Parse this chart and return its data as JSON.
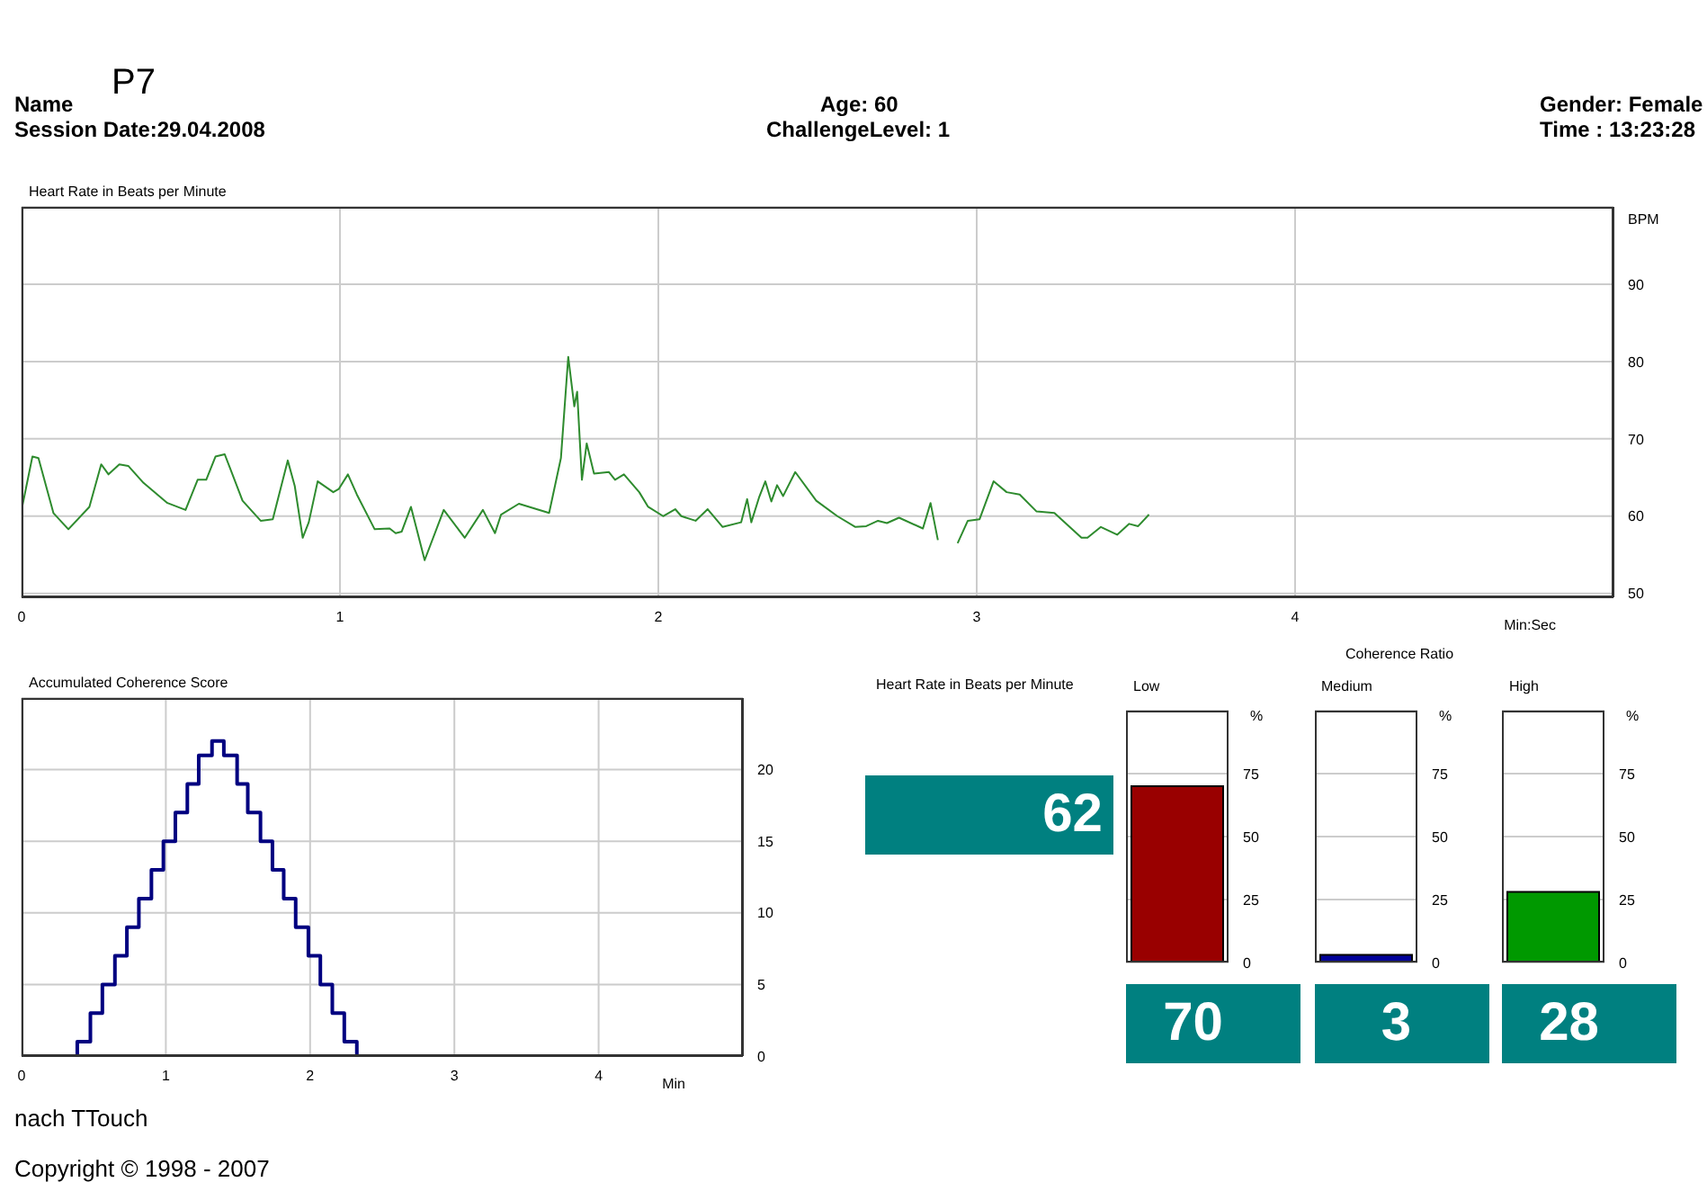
{
  "chart_data": [
    {
      "type": "other",
      "annotations": [
        "Name",
        "P7",
        "Session Date:29.04.2008",
        "Age: 60",
        "ChallengeLevel: 1",
        "Gender: Female",
        "Time :  13:23:28"
      ]
    },
    {
      "type": "line",
      "title": "Heart Rate in Beats per Minute",
      "ylabel": "BPM",
      "xlabel": "Min:Sec",
      "color": "#2e8b2e",
      "grid": true,
      "xlim": [
        0,
        5
      ],
      "xticks": [
        0,
        1,
        2,
        3,
        4
      ],
      "ylim": [
        49.5,
        100
      ],
      "yticks": [
        50,
        60,
        70,
        80,
        90
      ],
      "x": [
        0,
        0.034,
        0.053,
        0.1,
        0.147,
        0.213,
        0.25,
        0.273,
        0.307,
        0.335,
        0.383,
        0.458,
        0.515,
        0.553,
        0.58,
        0.609,
        0.638,
        0.694,
        0.751,
        0.789,
        0.836,
        0.858,
        0.883,
        0.902,
        0.93,
        0.979,
        0.996,
        1.025,
        1.053,
        1.109,
        1.156,
        1.175,
        1.194,
        1.223,
        1.266,
        1.326,
        1.392,
        1.449,
        1.487,
        1.506,
        1.562,
        1.657,
        1.694,
        1.717,
        1.736,
        1.745,
        1.76,
        1.775,
        1.798,
        1.845,
        1.864,
        1.892,
        1.94,
        1.968,
        2.015,
        2.053,
        2.072,
        2.117,
        2.155,
        2.202,
        2.26,
        2.279,
        2.292,
        2.317,
        2.336,
        2.355,
        2.373,
        2.392,
        2.43,
        2.496,
        2.562,
        2.619,
        2.653,
        2.69,
        2.718,
        2.756,
        2.831,
        2.855,
        2.878,
        2.897,
        2.915,
        2.94,
        2.972,
        3.009,
        3.053,
        3.094,
        3.135,
        3.188,
        3.244,
        3.329,
        3.348,
        3.39,
        3.441,
        3.479,
        3.507,
        3.541
      ],
      "values": [
        60.8,
        67.7,
        67.5,
        60.4,
        58.3,
        61.2,
        66.7,
        65.4,
        66.7,
        66.5,
        64.3,
        61.7,
        60.8,
        64.7,
        64.7,
        67.7,
        68,
        62,
        59.4,
        59.6,
        67.2,
        63.9,
        57.2,
        59.2,
        64.5,
        63.1,
        63.5,
        65.4,
        62.8,
        58.3,
        58.4,
        57.8,
        58,
        61.2,
        54.3,
        60.8,
        57.2,
        60.8,
        57.8,
        60.2,
        61.6,
        60.4,
        67.5,
        80.6,
        74.2,
        76.1,
        64.7,
        69.4,
        65.5,
        65.7,
        64.7,
        65.4,
        63.1,
        61.2,
        60,
        60.9,
        60,
        59.4,
        60.9,
        58.6,
        59.2,
        62.2,
        59.2,
        62.5,
        64.5,
        61.9,
        64,
        62.6,
        65.7,
        62,
        60,
        58.6,
        58.7,
        59.4,
        59.1,
        59.8,
        58.4,
        61.7,
        56.9,
        null,
        null,
        56.5,
        59.4,
        59.6,
        64.5,
        63.1,
        62.8,
        60.6,
        60.4,
        57.2,
        57.2,
        58.6,
        57.6,
        59,
        58.7,
        60.2
      ]
    },
    {
      "type": "step",
      "title": "Accumulated Coherence Score",
      "xlabel": "Min",
      "color": "#000080",
      "grid": true,
      "xlim": [
        0,
        5
      ],
      "xticks": [
        0,
        1,
        2,
        3,
        4
      ],
      "ylim": [
        0,
        25
      ],
      "yticks": [
        0,
        5,
        10,
        15,
        20
      ],
      "x": [
        0,
        0.386,
        0.477,
        0.56,
        0.647,
        0.73,
        0.813,
        0.9,
        0.983,
        1.066,
        1.149,
        1.228,
        1.32,
        1.402,
        1.494,
        1.568,
        1.656,
        1.739,
        1.817,
        1.9,
        1.988,
        2.071,
        2.154,
        2.237,
        2.324,
        3.714
      ],
      "values": [
        0,
        1,
        3,
        5,
        7,
        9,
        11,
        13,
        15,
        17,
        19,
        21,
        22,
        21,
        19,
        17,
        15,
        13,
        11,
        9,
        7,
        5,
        3,
        1,
        0,
        0
      ]
    },
    {
      "type": "other",
      "title": "Heart Rate in Beats per Minute",
      "values": [
        62
      ],
      "value_labels": [
        "62"
      ],
      "color": "#008080"
    },
    {
      "type": "other",
      "annotations": [
        "Coherence Ratio"
      ]
    },
    {
      "type": "bar",
      "ylabel": "%",
      "categories": [
        "Low"
      ],
      "values": [
        70
      ],
      "colors": [
        "#990000"
      ],
      "ylim": [
        0,
        100
      ],
      "yticks": [
        0,
        25,
        50,
        75
      ],
      "grid": "y",
      "data_labels": true
    },
    {
      "type": "bar",
      "ylabel": "%",
      "categories": [
        "Medium"
      ],
      "values": [
        3
      ],
      "colors": [
        "#000099"
      ],
      "ylim": [
        0,
        100
      ],
      "yticks": [
        0,
        25,
        50,
        75
      ],
      "grid": "y",
      "data_labels": true
    },
    {
      "type": "bar",
      "ylabel": "%",
      "categories": [
        "High"
      ],
      "values": [
        28
      ],
      "colors": [
        "#009900"
      ],
      "ylim": [
        0,
        100
      ],
      "yticks": [
        0,
        25,
        50,
        75
      ],
      "grid": "y",
      "data_labels": true
    },
    {
      "type": "other",
      "annotations": [
        "nach TTouch",
        "Copyright ©  1998 - 2007"
      ]
    }
  ]
}
